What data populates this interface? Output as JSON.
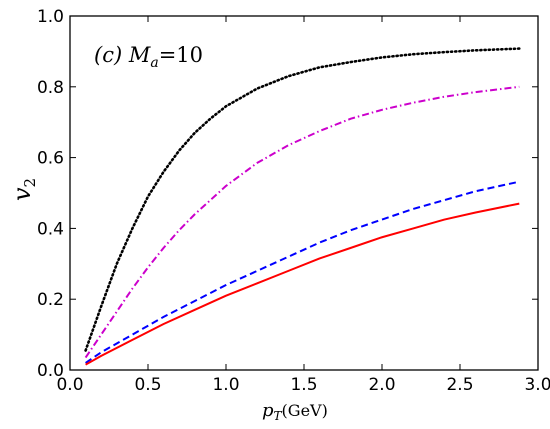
{
  "chart_data": {
    "type": "line",
    "xlim": [
      0.0,
      3.0
    ],
    "ylim": [
      0.0,
      1.0
    ],
    "xticks": [
      "0.0",
      "0.5",
      "1.0",
      "1.5",
      "2.0",
      "2.5",
      "3.0"
    ],
    "yticks": [
      "0.0",
      "0.2",
      "0.4",
      "0.6",
      "0.8",
      "1.0"
    ],
    "xlabel": {
      "main": "p",
      "sub": "T",
      "unit": "(GeV)"
    },
    "ylabel": {
      "main": "v",
      "sub": "2"
    },
    "annotation": {
      "prefix": "(c) ",
      "symbol": "M",
      "sub": "a",
      "suffix": "=10"
    },
    "grid": false,
    "series": [
      {
        "style": "dotted",
        "color": "#000000",
        "x": [
          0.1,
          0.2,
          0.3,
          0.4,
          0.5,
          0.6,
          0.7,
          0.8,
          0.9,
          1.0,
          1.2,
          1.4,
          1.6,
          1.8,
          2.0,
          2.2,
          2.4,
          2.6,
          2.88
        ],
        "y": [
          0.055,
          0.18,
          0.3,
          0.4,
          0.49,
          0.56,
          0.62,
          0.67,
          0.71,
          0.745,
          0.795,
          0.83,
          0.855,
          0.87,
          0.883,
          0.892,
          0.898,
          0.903,
          0.908
        ]
      },
      {
        "style": "dashdot",
        "color": "#cc00cc",
        "x": [
          0.1,
          0.2,
          0.3,
          0.4,
          0.5,
          0.6,
          0.7,
          0.8,
          0.9,
          1.0,
          1.2,
          1.4,
          1.6,
          1.8,
          2.0,
          2.2,
          2.4,
          2.6,
          2.88
        ],
        "y": [
          0.035,
          0.1,
          0.165,
          0.23,
          0.29,
          0.345,
          0.395,
          0.44,
          0.48,
          0.52,
          0.585,
          0.635,
          0.675,
          0.71,
          0.735,
          0.755,
          0.772,
          0.785,
          0.8
        ]
      },
      {
        "style": "dashed",
        "color": "#0000ff",
        "x": [
          0.1,
          0.2,
          0.4,
          0.6,
          0.8,
          1.0,
          1.2,
          1.4,
          1.6,
          1.8,
          2.0,
          2.2,
          2.4,
          2.6,
          2.88
        ],
        "y": [
          0.02,
          0.05,
          0.1,
          0.15,
          0.195,
          0.24,
          0.28,
          0.32,
          0.36,
          0.395,
          0.425,
          0.455,
          0.48,
          0.505,
          0.532
        ]
      },
      {
        "style": "solid",
        "color": "#ff0000",
        "x": [
          0.1,
          0.2,
          0.4,
          0.6,
          0.8,
          1.0,
          1.2,
          1.4,
          1.6,
          1.8,
          2.0,
          2.2,
          2.4,
          2.6,
          2.88
        ],
        "y": [
          0.015,
          0.04,
          0.085,
          0.13,
          0.17,
          0.21,
          0.245,
          0.28,
          0.315,
          0.345,
          0.375,
          0.4,
          0.425,
          0.445,
          0.47
        ]
      }
    ]
  }
}
